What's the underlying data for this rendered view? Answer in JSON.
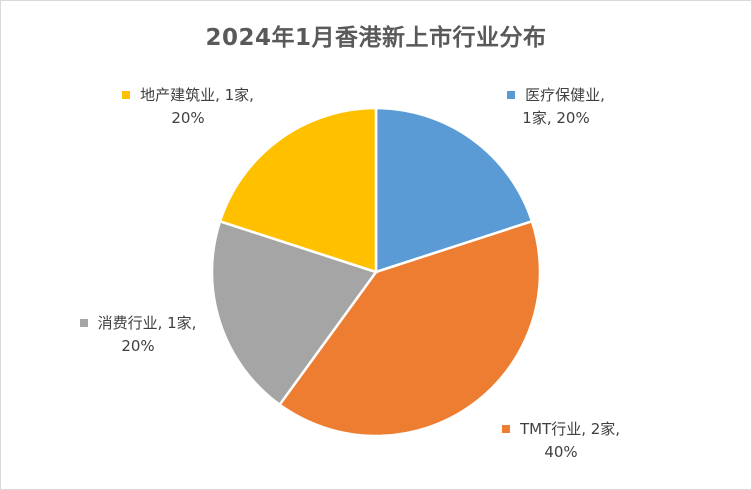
{
  "chart_data": {
    "type": "pie",
    "title": "2024年1月香港新上市行业分布",
    "slices": [
      {
        "category": "医疗保健业",
        "value": 1,
        "unit": "家",
        "percent": "20%",
        "color": "#5B9BD5",
        "label_line1": "医疗保健业,",
        "label_line2": "1家, 20%"
      },
      {
        "category": "TMT行业",
        "value": 2,
        "unit": "家",
        "percent": "40%",
        "color": "#ED7D31",
        "label_line1": "TMT行业, 2家,",
        "label_line2": "40%"
      },
      {
        "category": "消费行业",
        "value": 1,
        "unit": "家",
        "percent": "20%",
        "color": "#A5A5A5",
        "label_line1": "消费行业, 1家,",
        "label_line2": "20%"
      },
      {
        "category": "地产建筑业",
        "value": 1,
        "unit": "家",
        "percent": "20%",
        "color": "#FFC000",
        "label_line1": "地产建筑业, 1家,",
        "label_line2": "20%"
      }
    ],
    "start_angle_deg": 0,
    "direction": "clockwise",
    "legend": "none"
  }
}
